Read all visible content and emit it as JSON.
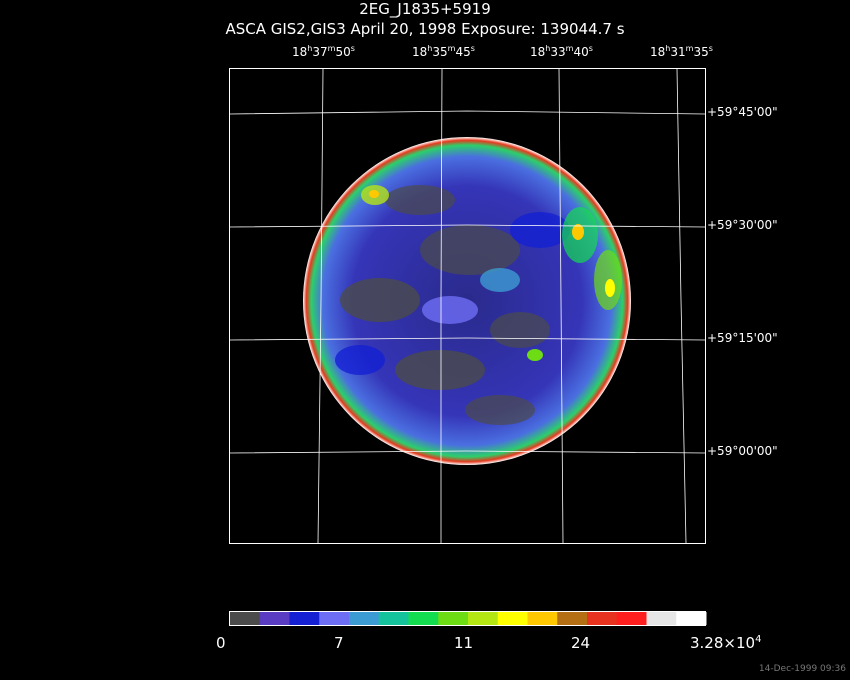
{
  "header": {
    "target": "2EG_J1835+5919",
    "observation": "ASCA GIS2,GIS3 April 20, 1998 Exposure: 139044.7 s"
  },
  "ra_ticks": [
    {
      "h": "18",
      "m": "37",
      "s": "50"
    },
    {
      "h": "18",
      "m": "35",
      "s": "45"
    },
    {
      "h": "18",
      "m": "33",
      "s": "40"
    },
    {
      "h": "18",
      "m": "31",
      "s": "35"
    }
  ],
  "dec_ticks": [
    "+59°45'00\"",
    "+59°30'00\"",
    "+59°15'00\"",
    "+59°00'00\""
  ],
  "colorbar": {
    "colors": [
      "#4b4b4b",
      "#5a3cc3",
      "#1420d2",
      "#6e6ef5",
      "#3c9bd2",
      "#14c39b",
      "#14dc50",
      "#6edc14",
      "#b4e614",
      "#ffff00",
      "#ffc800",
      "#b46e14",
      "#e6321e",
      "#ff1e1e",
      "#e6e6e6",
      "#ffffff"
    ],
    "labels": [
      "0",
      "7",
      "11",
      "24",
      "3.28×10",
      "4"
    ]
  },
  "timestamp": "14-Dec-1999 09:36"
}
